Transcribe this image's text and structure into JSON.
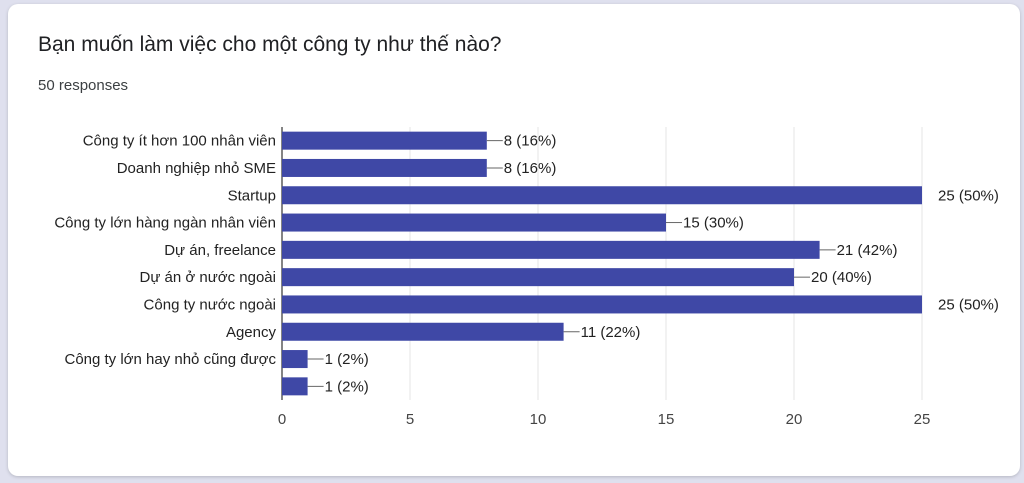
{
  "question": {
    "title": "Bạn muốn làm việc cho một công ty như thế nào?",
    "responses": "50 responses"
  },
  "colors": {
    "bar": "#3f48a6",
    "grid": "#e6e6e6",
    "axis": "#333333",
    "leader": "#666666"
  },
  "chart_data": {
    "type": "bar",
    "orientation": "horizontal",
    "categories": [
      "Công ty ít hơn 100 nhân viên",
      "Doanh nghiệp nhỏ SME",
      "Startup",
      "Công ty lớn hàng ngàn nhân viên",
      "Dự án, freelance",
      "Dự án ở nước ngoài",
      "Công ty nước ngoài",
      "Agency",
      "Công ty lớn hay nhỏ cũng được",
      ""
    ],
    "values": [
      8,
      8,
      25,
      15,
      21,
      20,
      25,
      11,
      1,
      1
    ],
    "value_labels": [
      "8 (16%)",
      "8 (16%)",
      "25 (50%)",
      "15 (30%)",
      "21 (42%)",
      "20 (40%)",
      "25 (50%)",
      "11 (22%)",
      "1 (2%)",
      "1 (2%)"
    ],
    "xlim": [
      0,
      25
    ],
    "xticks": [
      0,
      5,
      10,
      15,
      20,
      25
    ],
    "grid": true,
    "legend": "none"
  }
}
